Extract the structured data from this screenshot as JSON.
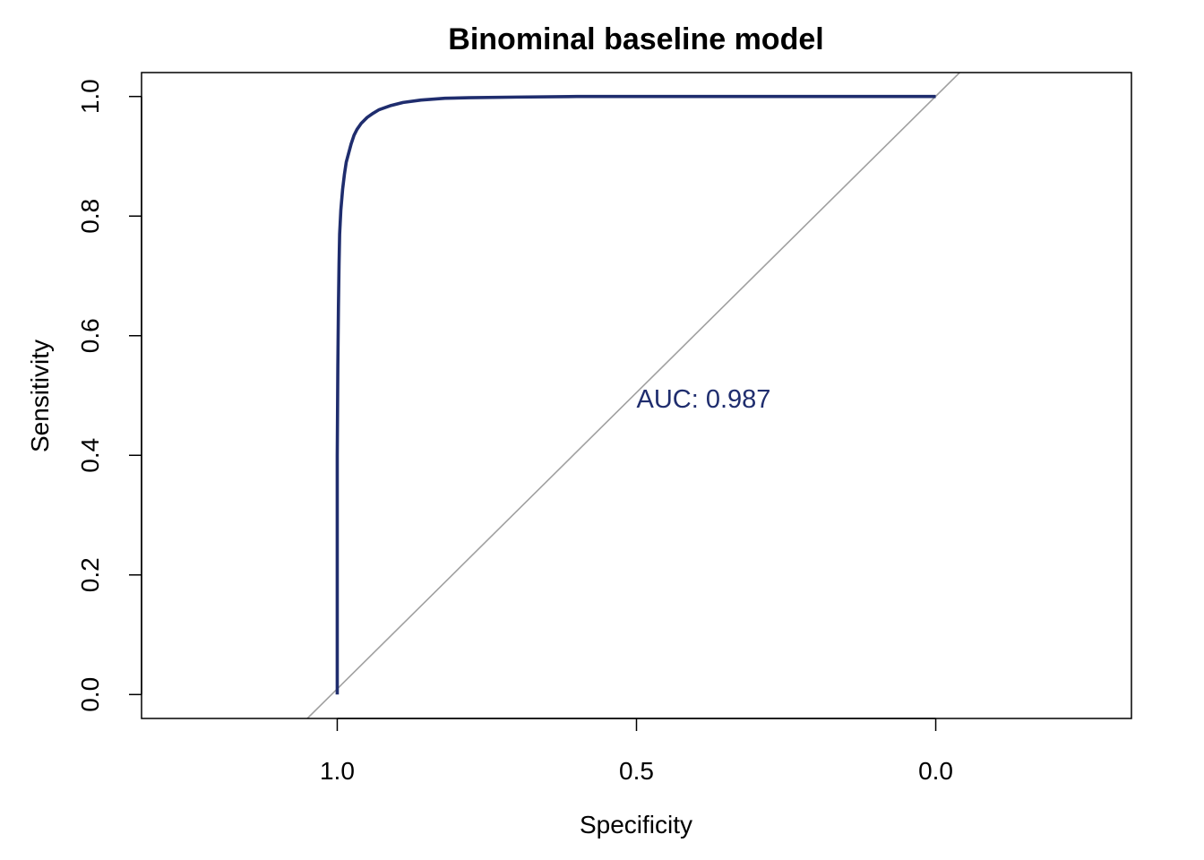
{
  "chart_data": {
    "type": "line",
    "title": "Binominal baseline model",
    "xlabel": "Specificity",
    "ylabel": "Sensitivity",
    "x_reversed": true,
    "xlim": [
      1.327,
      -0.327
    ],
    "ylim": [
      -0.04,
      1.04
    ],
    "x_ticks": [
      1.0,
      0.5,
      0.0
    ],
    "x_tick_labels": [
      "1.0",
      "0.5",
      "0.0"
    ],
    "y_ticks": [
      0.0,
      0.2,
      0.4,
      0.6,
      0.8,
      1.0
    ],
    "y_tick_labels": [
      "0.0",
      "0.2",
      "0.4",
      "0.6",
      "0.8",
      "1.0"
    ],
    "grid": false,
    "legend": "none",
    "series": [
      {
        "color": "#1f2d6e",
        "x": [
          1.0,
          1.0,
          1.0,
          0.999,
          0.998,
          0.997,
          0.996,
          0.994,
          0.991,
          0.988,
          0.985,
          0.981,
          0.977,
          0.972,
          0.967,
          0.96,
          0.95,
          0.94,
          0.93,
          0.91,
          0.89,
          0.86,
          0.82,
          0.78,
          0.7,
          0.6,
          0.5,
          0.4,
          0.3,
          0.2,
          0.1,
          0.0
        ],
        "y": [
          0.0,
          0.2,
          0.4,
          0.55,
          0.65,
          0.72,
          0.77,
          0.81,
          0.845,
          0.87,
          0.89,
          0.905,
          0.92,
          0.935,
          0.945,
          0.955,
          0.965,
          0.972,
          0.978,
          0.985,
          0.99,
          0.994,
          0.997,
          0.998,
          0.999,
          1.0,
          1.0,
          1.0,
          1.0,
          1.0,
          1.0,
          1.0
        ]
      }
    ],
    "reference_line": {
      "x": [
        1.05,
        -0.04
      ],
      "y": [
        -0.04,
        1.04
      ],
      "color": "#a0a0a0"
    },
    "annotations": [
      {
        "text": "AUC: 0.987",
        "x": 0.5,
        "y": 0.48,
        "color": "#1f2d6e"
      }
    ]
  }
}
